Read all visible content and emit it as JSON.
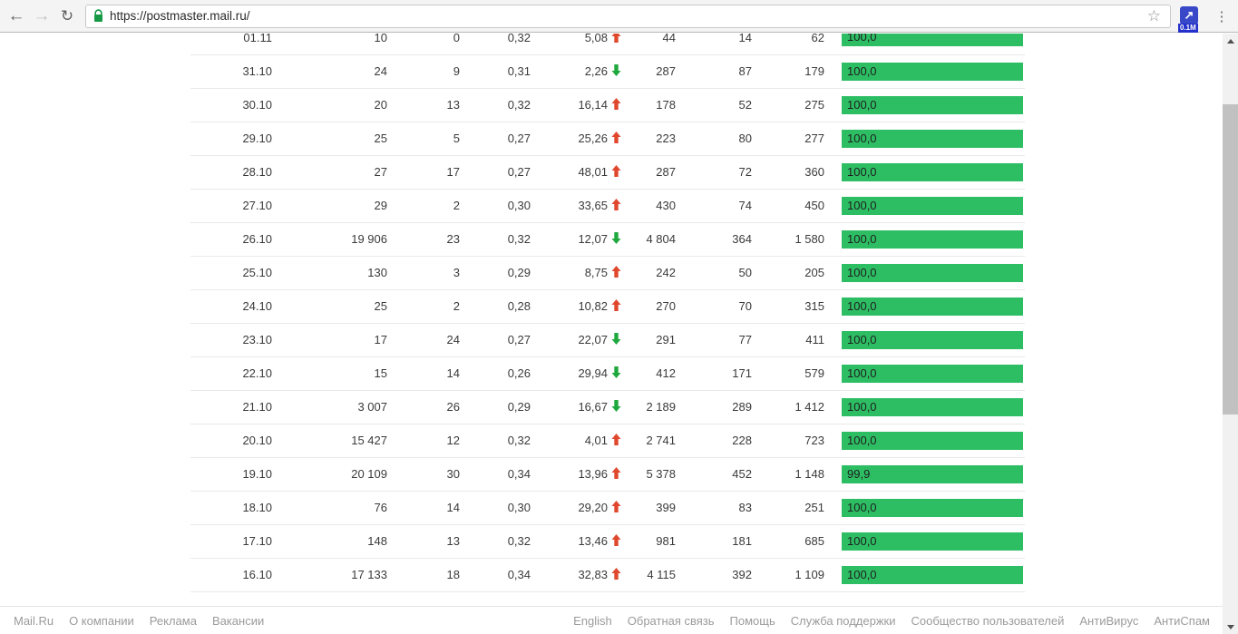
{
  "browser": {
    "url": "https://postmaster.mail.ru/",
    "back_icon": "←",
    "forward_icon": "→",
    "reload_icon": "↻",
    "star_icon": "☆",
    "menu_icon": "⋮",
    "extension_glyph": "↗",
    "extension_badge": "0.1M"
  },
  "colors": {
    "bar_green": "#2dbe64",
    "arrow_up": "#e0482e",
    "arrow_down": "#1fa83d",
    "lock_green": "#169a46"
  },
  "table": {
    "rows": [
      {
        "date": "01.11",
        "v1": "10",
        "v2": "0",
        "v3": "0,32",
        "delta": "5,08",
        "dir": "up",
        "v4": "44",
        "v5": "14",
        "v6": "62",
        "pct": "100,0"
      },
      {
        "date": "31.10",
        "v1": "24",
        "v2": "9",
        "v3": "0,31",
        "delta": "2,26",
        "dir": "down",
        "v4": "287",
        "v5": "87",
        "v6": "179",
        "pct": "100,0"
      },
      {
        "date": "30.10",
        "v1": "20",
        "v2": "13",
        "v3": "0,32",
        "delta": "16,14",
        "dir": "up",
        "v4": "178",
        "v5": "52",
        "v6": "275",
        "pct": "100,0"
      },
      {
        "date": "29.10",
        "v1": "25",
        "v2": "5",
        "v3": "0,27",
        "delta": "25,26",
        "dir": "up",
        "v4": "223",
        "v5": "80",
        "v6": "277",
        "pct": "100,0"
      },
      {
        "date": "28.10",
        "v1": "27",
        "v2": "17",
        "v3": "0,27",
        "delta": "48,01",
        "dir": "up",
        "v4": "287",
        "v5": "72",
        "v6": "360",
        "pct": "100,0"
      },
      {
        "date": "27.10",
        "v1": "29",
        "v2": "2",
        "v3": "0,30",
        "delta": "33,65",
        "dir": "up",
        "v4": "430",
        "v5": "74",
        "v6": "450",
        "pct": "100,0"
      },
      {
        "date": "26.10",
        "v1": "19 906",
        "v2": "23",
        "v3": "0,32",
        "delta": "12,07",
        "dir": "down",
        "v4": "4 804",
        "v5": "364",
        "v6": "1 580",
        "pct": "100,0"
      },
      {
        "date": "25.10",
        "v1": "130",
        "v2": "3",
        "v3": "0,29",
        "delta": "8,75",
        "dir": "up",
        "v4": "242",
        "v5": "50",
        "v6": "205",
        "pct": "100,0"
      },
      {
        "date": "24.10",
        "v1": "25",
        "v2": "2",
        "v3": "0,28",
        "delta": "10,82",
        "dir": "up",
        "v4": "270",
        "v5": "70",
        "v6": "315",
        "pct": "100,0"
      },
      {
        "date": "23.10",
        "v1": "17",
        "v2": "24",
        "v3": "0,27",
        "delta": "22,07",
        "dir": "down",
        "v4": "291",
        "v5": "77",
        "v6": "411",
        "pct": "100,0"
      },
      {
        "date": "22.10",
        "v1": "15",
        "v2": "14",
        "v3": "0,26",
        "delta": "29,94",
        "dir": "down",
        "v4": "412",
        "v5": "171",
        "v6": "579",
        "pct": "100,0"
      },
      {
        "date": "21.10",
        "v1": "3 007",
        "v2": "26",
        "v3": "0,29",
        "delta": "16,67",
        "dir": "down",
        "v4": "2 189",
        "v5": "289",
        "v6": "1 412",
        "pct": "100,0"
      },
      {
        "date": "20.10",
        "v1": "15 427",
        "v2": "12",
        "v3": "0,32",
        "delta": "4,01",
        "dir": "up",
        "v4": "2 741",
        "v5": "228",
        "v6": "723",
        "pct": "100,0"
      },
      {
        "date": "19.10",
        "v1": "20 109",
        "v2": "30",
        "v3": "0,34",
        "delta": "13,96",
        "dir": "up",
        "v4": "5 378",
        "v5": "452",
        "v6": "1 148",
        "pct": "99,9"
      },
      {
        "date": "18.10",
        "v1": "76",
        "v2": "14",
        "v3": "0,30",
        "delta": "29,20",
        "dir": "up",
        "v4": "399",
        "v5": "83",
        "v6": "251",
        "pct": "100,0"
      },
      {
        "date": "17.10",
        "v1": "148",
        "v2": "13",
        "v3": "0,32",
        "delta": "13,46",
        "dir": "up",
        "v4": "981",
        "v5": "181",
        "v6": "685",
        "pct": "100,0"
      },
      {
        "date": "16.10",
        "v1": "17 133",
        "v2": "18",
        "v3": "0,34",
        "delta": "32,83",
        "dir": "up",
        "v4": "4 115",
        "v5": "392",
        "v6": "1 109",
        "pct": "100,0"
      }
    ]
  },
  "footer": {
    "left_links": [
      "Mail.Ru",
      "О компании",
      "Реклама",
      "Вакансии"
    ],
    "right_links": [
      "English",
      "Обратная связь",
      "Помощь",
      "Служба поддержки",
      "Сообщество пользователей",
      "АнтиВирус",
      "АнтиСпам"
    ]
  }
}
